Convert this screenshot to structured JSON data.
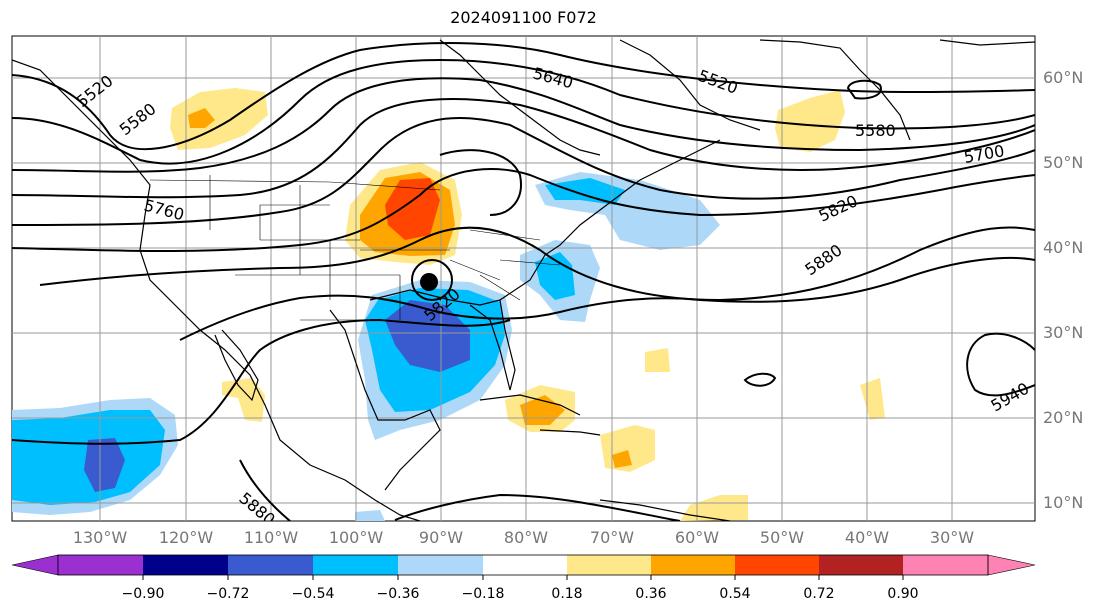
{
  "title": "2024091100 F072",
  "lon_labels": [
    "130°W",
    "120°W",
    "110°W",
    "100°W",
    "90°W",
    "80°W",
    "70°W",
    "60°W",
    "50°W",
    "40°W",
    "30°W"
  ],
  "lat_labels": [
    "60°N",
    "50°N",
    "40°N",
    "30°N",
    "20°N",
    "10°N"
  ],
  "contour_labels": [
    "5520",
    "5580",
    "5640",
    "5520",
    "5580",
    "5700",
    "5760",
    "5820",
    "5880",
    "5820",
    "5940",
    "5880"
  ],
  "colorbar": {
    "ticks": [
      "−0.90",
      "−0.72",
      "−0.54",
      "−0.36",
      "−0.18",
      "0.18",
      "0.36",
      "0.54",
      "0.72",
      "0.90"
    ],
    "colors": [
      "#9b30d0",
      "#00008b",
      "#3a5bd0",
      "#00bfff",
      "#add8f7",
      "#ffffff",
      "#ffe88a",
      "#ffa500",
      "#ff4500",
      "#b22222",
      "#ff82b4"
    ]
  },
  "storm_marker": "hurricane-center-dot"
}
